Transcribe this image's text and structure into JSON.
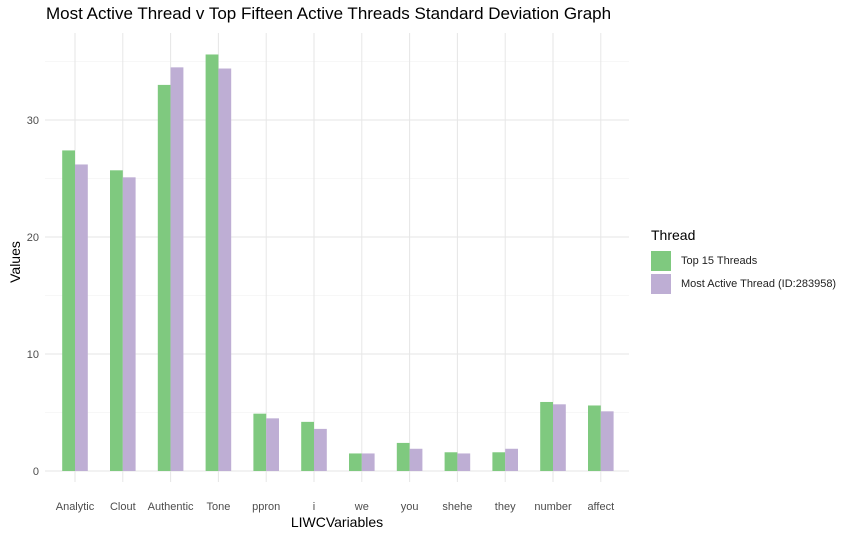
{
  "chart_data": {
    "type": "bar",
    "title": "Most Active Thread v Top Fifteen Active Threads Standard Deviation Graph",
    "xlabel": "LIWCVariables",
    "ylabel": "Values",
    "categories": [
      "Analytic",
      "Clout",
      "Authentic",
      "Tone",
      "ppron",
      "i",
      "we",
      "you",
      "shehe",
      "they",
      "number",
      "affect"
    ],
    "series": [
      {
        "name": "Top 15 Threads",
        "color": "#7fc97f",
        "values": [
          27.4,
          25.7,
          33.0,
          35.6,
          4.9,
          4.2,
          1.5,
          2.4,
          1.6,
          1.6,
          5.9,
          5.6
        ]
      },
      {
        "name": "Most Active Thread (ID:283958)",
        "color": "#beaed4",
        "values": [
          26.2,
          25.1,
          34.5,
          34.4,
          4.5,
          3.6,
          1.5,
          1.9,
          1.5,
          1.9,
          5.7,
          5.1
        ]
      }
    ],
    "yticks": [
      0,
      10,
      20,
      30
    ],
    "ylim": [
      0,
      37.4
    ],
    "legend": {
      "title": "Thread",
      "position": "right"
    },
    "grid": true
  }
}
